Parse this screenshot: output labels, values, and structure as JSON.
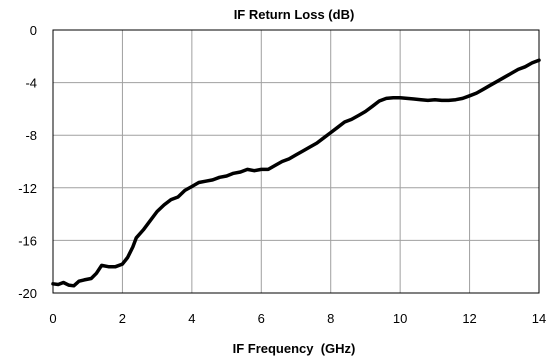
{
  "chart_data": {
    "type": "line",
    "title": "IF Return Loss (dB)",
    "xlabel": "IF Frequency  (GHz)",
    "ylabel": "",
    "xlim": [
      0,
      14
    ],
    "ylim": [
      -20,
      0
    ],
    "xticks": [
      0,
      2,
      4,
      6,
      8,
      10,
      12,
      14
    ],
    "yticks": [
      0,
      -4,
      -8,
      -12,
      -16,
      -20
    ],
    "xtick_labels": [
      "0",
      "2",
      "4",
      "6",
      "8",
      "10",
      "12",
      "14"
    ],
    "ytick_labels": [
      "0",
      "-4",
      "-8",
      "-12",
      "-16",
      "-20"
    ],
    "grid": true,
    "legend": "none",
    "series": [
      {
        "color": "#000000",
        "x": [
          0,
          0.15,
          0.3,
          0.45,
          0.6,
          0.75,
          0.9,
          1.1,
          1.25,
          1.4,
          1.6,
          1.8,
          2.0,
          2.15,
          2.3,
          2.4,
          2.6,
          2.8,
          3.0,
          3.2,
          3.4,
          3.6,
          3.8,
          4.0,
          4.2,
          4.4,
          4.6,
          4.8,
          5.0,
          5.2,
          5.4,
          5.6,
          5.8,
          6.0,
          6.2,
          6.4,
          6.6,
          6.8,
          7.0,
          7.2,
          7.4,
          7.6,
          7.8,
          8.0,
          8.2,
          8.4,
          8.6,
          8.8,
          9.0,
          9.2,
          9.4,
          9.6,
          9.8,
          10.0,
          10.2,
          10.4,
          10.6,
          10.8,
          11.0,
          11.2,
          11.4,
          11.6,
          11.8,
          12.0,
          12.2,
          12.4,
          12.6,
          12.8,
          13.0,
          13.2,
          13.4,
          13.6,
          13.8,
          14.0
        ],
        "y": [
          -19.3,
          -19.35,
          -19.2,
          -19.4,
          -19.45,
          -19.1,
          -19.0,
          -18.9,
          -18.5,
          -17.9,
          -18.0,
          -18.0,
          -17.8,
          -17.3,
          -16.5,
          -15.8,
          -15.2,
          -14.5,
          -13.8,
          -13.3,
          -12.9,
          -12.7,
          -12.2,
          -11.9,
          -11.6,
          -11.5,
          -11.4,
          -11.2,
          -11.1,
          -10.9,
          -10.8,
          -10.6,
          -10.7,
          -10.6,
          -10.6,
          -10.3,
          -10.0,
          -9.8,
          -9.5,
          -9.2,
          -8.9,
          -8.6,
          -8.2,
          -7.8,
          -7.4,
          -7.0,
          -6.8,
          -6.5,
          -6.2,
          -5.8,
          -5.4,
          -5.2,
          -5.15,
          -5.15,
          -5.2,
          -5.25,
          -5.3,
          -5.35,
          -5.3,
          -5.35,
          -5.35,
          -5.3,
          -5.2,
          -5.0,
          -4.8,
          -4.5,
          -4.2,
          -3.9,
          -3.6,
          -3.3,
          -3.0,
          -2.8,
          -2.5,
          -2.3
        ]
      }
    ]
  }
}
